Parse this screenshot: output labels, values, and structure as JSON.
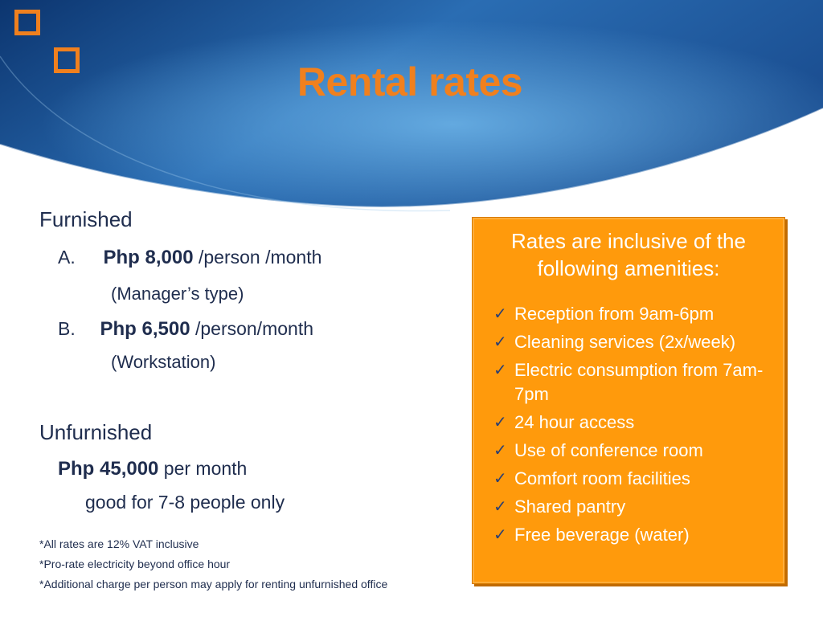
{
  "slide": {
    "title": "Rental rates",
    "accent_color": "#f0801e",
    "header_gradient": [
      "#0e3b7a",
      "#3e8fd0"
    ],
    "logo_icon": "two-orange-squares"
  },
  "furnished": {
    "heading": "Furnished",
    "option_a": {
      "marker": "A.",
      "price": "Php 8,000",
      "unit": " /person /month",
      "type": "(Manager’s type)"
    },
    "option_b": {
      "marker": "B.",
      "price": "Php 6,500",
      "unit": " /person/month",
      "type": "(Workstation)"
    }
  },
  "unfurnished": {
    "heading": "Unfurnished",
    "price": "Php 45,000",
    "unit": " per month",
    "note": "good for 7-8 people only"
  },
  "footnotes": [
    "*All rates are 12% VAT inclusive",
    "*Pro-rate electricity beyond office hour",
    "*Additional charge per person may apply for renting unfurnished office"
  ],
  "amenities": {
    "title_line1": "Rates are inclusive of the",
    "title_line2": "following amenities:",
    "check_icon": "checkmark-icon",
    "items": [
      "Reception from 9am-6pm",
      "Cleaning services (2x/week)",
      "Electric consumption from 7am-7pm",
      "24 hour access",
      "Use of conference room",
      "Comfort room facilities",
      "Shared pantry",
      "Free beverage (water)"
    ],
    "box_color": "#ff9a0c"
  }
}
